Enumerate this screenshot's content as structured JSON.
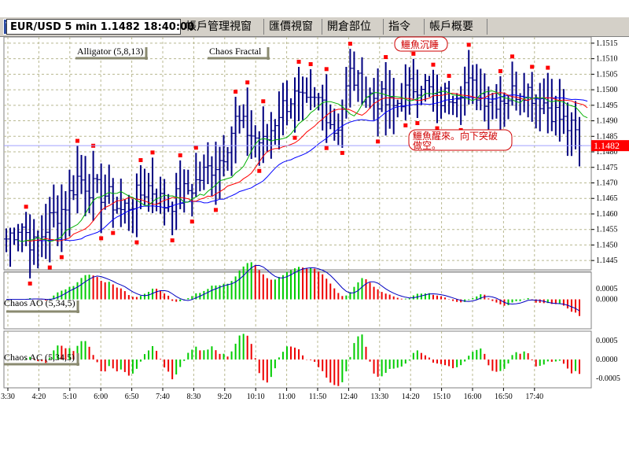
{
  "toolbar": {
    "tabs": [
      {
        "label": "EUR/USD 5 min 1.1482 18:40:00"
      },
      {
        "label": "帳戶管理視窗"
      },
      {
        "label": "匯價視窗"
      },
      {
        "label": "開倉部位"
      },
      {
        "label": "指令"
      },
      {
        "label": "帳戶概要"
      }
    ]
  },
  "colors": {
    "up": "#00cc00",
    "down": "#ee0000",
    "bar": "#000080",
    "jaw": "#0000ff",
    "teeth": "#ff0000",
    "lips": "#00b000",
    "fractal": "#ff0000",
    "grid": "#b8b890",
    "price_tag_bg": "#ff0000"
  },
  "chart_data": [
    {
      "type": "ohlc",
      "title": "EUR/USD 5 min 1.1482 18:40:00",
      "symbol": "EUR/USD",
      "timeframe": "5 min",
      "last_price": 1.1482,
      "last_price_label": "1.1482",
      "ylim": [
        1.1442,
        1.1517
      ],
      "y_ticks": [
        "1.1515",
        "1.1510",
        "1.1505",
        "1.1500",
        "1.1495",
        "1.1490",
        "1.1485",
        "1.1480",
        "1.1475",
        "1.1470",
        "1.1465",
        "1.1460",
        "1.1455",
        "1.1450",
        "1.1445"
      ],
      "x_tick_labels": [
        "3:30",
        "4:20",
        "5:10",
        "6:00",
        "6:50",
        "7:40",
        "8:30",
        "9:20",
        "10:10",
        "11:00",
        "11:50",
        "12:40",
        "13:30",
        "14:20",
        "15:10",
        "16:00",
        "16:50",
        "17:40"
      ],
      "close_path": [
        1.1452,
        1.1457,
        1.1449,
        1.1458,
        1.1462,
        1.1472,
        1.1468,
        1.1466,
        1.1461,
        1.1465,
        1.1469,
        1.1463,
        1.1465,
        1.1469,
        1.1474,
        1.1478,
        1.149,
        1.1486,
        1.1482,
        1.1493,
        1.1498,
        1.1494,
        1.1497,
        1.1486,
        1.1505,
        1.1499,
        1.1497,
        1.1494,
        1.15,
        1.1503,
        1.1496,
        1.1499,
        1.1502,
        1.1499,
        1.1497,
        1.1498,
        1.1501,
        1.1498,
        1.1494,
        1.1489,
        1.1484
      ],
      "indicators": [
        {
          "name": "Alligator (5,8,13)",
          "lines": [
            "jaw",
            "teeth",
            "lips"
          ]
        },
        {
          "name": "Chaos Fractal"
        }
      ],
      "annotations": [
        {
          "text": "鱷魚沉睡"
        },
        {
          "text": "鱷魚醒來。向下突破"
        },
        {
          "text": "做空。"
        }
      ]
    },
    {
      "type": "bar",
      "name": "Chaos AO (5,34,5)",
      "y_ticks": [
        "0.0005",
        "0.0000"
      ],
      "colors": "green when rising, red when falling"
    },
    {
      "type": "bar",
      "name": "Chaos AC (5,34,5)",
      "y_ticks": [
        "0.0005",
        "0.0000",
        "-0.0005"
      ],
      "colors": "green when rising, red when falling"
    }
  ]
}
